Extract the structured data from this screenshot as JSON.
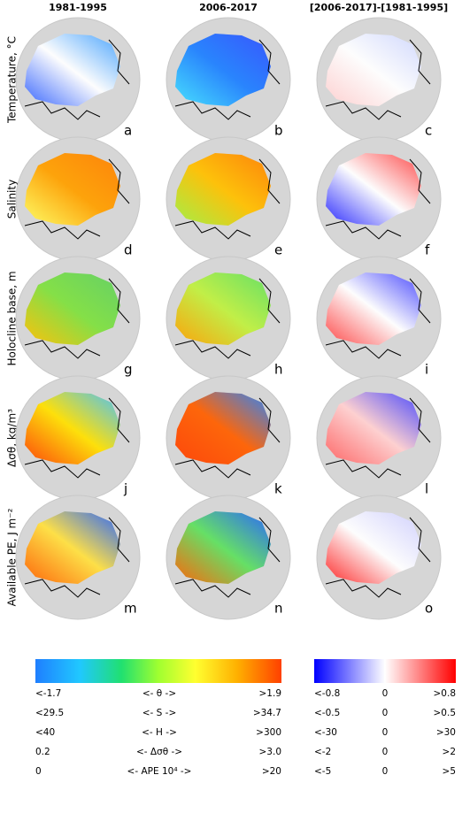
{
  "column_titles": [
    "1981-1995",
    "2006-2017",
    "[2006-2017]-[1981-1995]"
  ],
  "row_labels": [
    "Temperature, °C",
    "Salinity",
    "Holocline base, m",
    "Δσθ, kg/m³",
    "Available PE, J m⁻²"
  ],
  "panels": [
    "a",
    "b",
    "c",
    "d",
    "e",
    "f",
    "g",
    "h",
    "i",
    "j",
    "k",
    "l",
    "m",
    "n",
    "o"
  ],
  "colorbars": [
    {
      "rows": [
        [
          "<-1.7",
          "<- θ ->",
          ">1.9"
        ],
        [
          "<29.5",
          "<- S ->",
          ">34.7"
        ],
        [
          "<40",
          "<- H ->",
          ">300"
        ],
        [
          "0.2",
          "<- Δσθ ->",
          ">3.0"
        ],
        [
          "0",
          "<- APE 10⁴ ->",
          ">20"
        ]
      ]
    },
    {
      "rows": [
        [
          "<-0.8",
          "0",
          ">0.8"
        ],
        [
          "<-0.5",
          "0",
          ">0.5"
        ],
        [
          "<-30",
          "0",
          ">30"
        ],
        [
          "<-2",
          "0",
          ">2"
        ],
        [
          "<-5",
          "0",
          ">5"
        ]
      ]
    }
  ]
}
